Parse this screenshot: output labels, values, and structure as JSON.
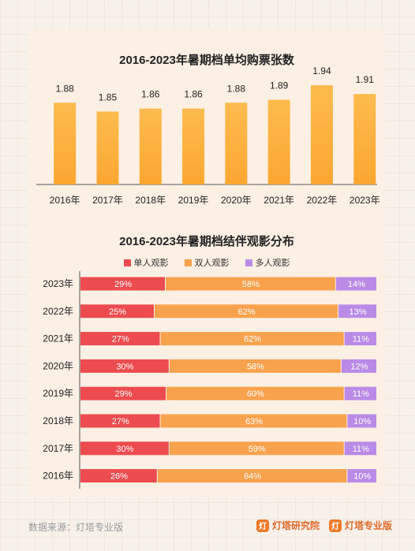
{
  "chart_data": [
    {
      "type": "bar",
      "title": "2016-2023年暑期档单均购票张数",
      "categories": [
        "2016年",
        "2017年",
        "2018年",
        "2019年",
        "2020年",
        "2021年",
        "2022年",
        "2023年"
      ],
      "values": [
        1.88,
        1.85,
        1.86,
        1.86,
        1.88,
        1.89,
        1.94,
        1.91
      ],
      "value_labels": [
        "1.88",
        "1.85",
        "1.86",
        "1.86",
        "1.88",
        "1.89",
        "1.94",
        "1.91"
      ],
      "ylim": [
        1.6,
        1.97
      ],
      "colors": {
        "bar_top": "#fdbb4e",
        "bar_bottom": "#fba731"
      }
    },
    {
      "type": "bar",
      "stacked": true,
      "orientation": "horizontal",
      "title": "2016-2023年暑期档结伴观影分布",
      "categories": [
        "2023年",
        "2022年",
        "2021年",
        "2020年",
        "2019年",
        "2018年",
        "2017年",
        "2016年"
      ],
      "series": [
        {
          "name": "单人观影",
          "color": "#ec4c4f",
          "values": [
            29,
            25,
            27,
            30,
            29,
            27,
            30,
            26
          ],
          "labels": [
            "29%",
            "25%",
            "27%",
            "30%",
            "29%",
            "27%",
            "30%",
            "26%"
          ]
        },
        {
          "name": "双人观影",
          "color": "#f9a24e",
          "values": [
            58,
            62,
            62,
            58,
            60,
            63,
            59,
            64
          ],
          "labels": [
            "58%",
            "62%",
            "62%",
            "58%",
            "60%",
            "63%",
            "59%",
            "64%"
          ]
        },
        {
          "name": "多人观影",
          "color": "#b98be6",
          "values": [
            14,
            13,
            11,
            12,
            11,
            10,
            11,
            10
          ],
          "labels": [
            "14%",
            "13%",
            "11%",
            "12%",
            "11%",
            "10%",
            "11%",
            "10%"
          ]
        }
      ],
      "legend": "top"
    }
  ],
  "footer": {
    "source": "数据来源：灯塔专业版",
    "brand1": "灯塔研究院",
    "brand2": "灯塔专业版"
  }
}
